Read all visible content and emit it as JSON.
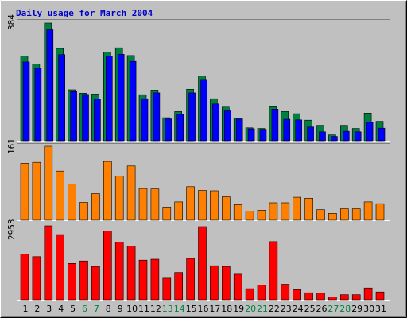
{
  "chart_data": {
    "type": "bar",
    "title": "Daily usage for March 2004",
    "categories": [
      "1",
      "2",
      "3",
      "4",
      "5",
      "6",
      "7",
      "8",
      "9",
      "10",
      "11",
      "12",
      "13",
      "14",
      "15",
      "16",
      "17",
      "18",
      "19",
      "20",
      "21",
      "22",
      "23",
      "24",
      "25",
      "26",
      "27",
      "28",
      "29",
      "30",
      "31"
    ],
    "weekend_days": [
      "6",
      "7",
      "13",
      "14",
      "20",
      "21",
      "27",
      "28"
    ],
    "colors": {
      "background": "#c0c0c0",
      "plot_background": "#c0c0c0",
      "hits": "#008040",
      "files": "#0000ff",
      "pages": "#ff8000",
      "kbytes": "#ff0000",
      "title": "#0000cc",
      "weekday_label": "#000000",
      "weekend_label": "#008040"
    },
    "panels": [
      {
        "name": "hits-files",
        "max_label": "384",
        "ylim": [
          0,
          384
        ],
        "series": [
          {
            "key": "hits",
            "values": [
              276,
              251,
              384,
              301,
              166,
              155,
              152,
              289,
              303,
              278,
              150,
              165,
              75,
              95,
              168,
              212,
              137,
              112,
              74,
              42,
              40,
              113,
              95,
              88,
              67,
              50,
              19,
              50,
              40,
              90,
              63
            ]
          },
          {
            "key": "files",
            "values": [
              257,
              236,
              362,
              281,
              160,
              151,
              136,
              276,
              282,
              259,
              137,
              156,
              71,
              86,
              156,
              200,
              120,
              100,
              71,
              39,
              37,
              103,
              70,
              68,
              45,
              29,
              14,
              31,
              29,
              60,
              41
            ]
          }
        ]
      },
      {
        "name": "pages",
        "max_label": "161",
        "ylim": [
          0,
          161
        ],
        "series": [
          {
            "key": "pages",
            "values": [
              124,
              126,
              161,
              107,
              79,
              39,
              58,
              128,
              96,
              118,
              69,
              68,
              27,
              40,
              73,
              65,
              64,
              51,
              34,
              20,
              22,
              38,
              38,
              50,
              48,
              23,
              15,
              25,
              25,
              40,
              36
            ]
          }
        ]
      },
      {
        "name": "kbytes",
        "max_label": "2953",
        "ylim": [
          0,
          2953
        ],
        "series": [
          {
            "key": "kbytes",
            "values": [
              1820,
              1720,
              2953,
              2600,
              1450,
              1550,
              1330,
              2750,
              2300,
              2140,
              1580,
              1620,
              860,
              1090,
              1650,
              2920,
              1360,
              1330,
              1020,
              440,
              580,
              2320,
              620,
              400,
              280,
              260,
              110,
              200,
              200,
              470,
              310
            ]
          }
        ]
      }
    ]
  }
}
